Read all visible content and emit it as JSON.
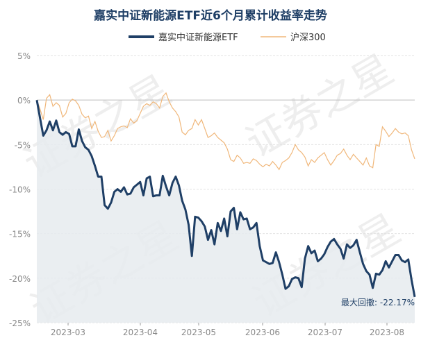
{
  "chart_data": {
    "type": "line",
    "title": "嘉实中证新能源ETF近6个月累计收益率走势",
    "x_tick_labels": [
      "2023-03",
      "2023-04",
      "2023-05",
      "2023-06",
      "2023-07",
      "2023-08"
    ],
    "y_tick_labels": [
      "5%",
      "0%",
      "-5%",
      "-10%",
      "-15%",
      "-20%",
      "-25%"
    ],
    "ylim": [
      -25,
      5
    ],
    "grid": true,
    "legend_position": "top-center",
    "annotation": "最大回撤: -22.17%",
    "watermark": "证券之星",
    "series": [
      {
        "name": "嘉实中证新能源ETF",
        "color": "#1f3f66",
        "fill": "#e6ebef",
        "values": [
          0.0,
          -2.0,
          -4.0,
          -3.4,
          -2.4,
          -3.4,
          -2.3,
          -3.6,
          -3.9,
          -3.6,
          -3.8,
          -5.2,
          -5.2,
          -3.3,
          -4.6,
          -5.3,
          -5.6,
          -6.3,
          -7.4,
          -8.6,
          -8.6,
          -11.8,
          -12.2,
          -11.5,
          -10.3,
          -10.0,
          -10.3,
          -9.8,
          -10.6,
          -10.5,
          -9.8,
          -9.5,
          -9.2,
          -10.7,
          -8.8,
          -8.6,
          -10.8,
          -10.7,
          -10.7,
          -8.5,
          -9.7,
          -10.7,
          -9.3,
          -8.6,
          -9.6,
          -11.3,
          -12.3,
          -14.0,
          -17.5,
          -13.1,
          -13.2,
          -13.6,
          -14.2,
          -15.7,
          -14.6,
          -16.2,
          -13.8,
          -14.7,
          -13.3,
          -15.3,
          -12.5,
          -12.1,
          -14.5,
          -12.6,
          -13.4,
          -13.3,
          -14.5,
          -14.3,
          -13.8,
          -16.4,
          -18.0,
          -18.2,
          -18.4,
          -18.3,
          -17.1,
          -18.2,
          -19.6,
          -21.2,
          -20.9,
          -20.1,
          -19.9,
          -20.0,
          -21.0,
          -17.8,
          -16.4,
          -17.2,
          -16.9,
          -18.1,
          -17.8,
          -17.3,
          -16.5,
          -15.9,
          -15.6,
          -16.2,
          -16.7,
          -17.8,
          -16.2,
          -16.6,
          -16.3,
          -15.7,
          -17.1,
          -18.4,
          -19.2,
          -19.6,
          -21.1,
          -19.5,
          -19.6,
          -19.1,
          -18.1,
          -18.8,
          -18.1,
          -17.4,
          -17.4,
          -18.0,
          -18.2,
          -17.9,
          -20.2,
          -22.1
        ]
      },
      {
        "name": "沪深300",
        "color": "#f0b77a",
        "values": [
          0.0,
          -1.0,
          -2.2,
          0.2,
          0.6,
          -0.7,
          -0.3,
          -0.6,
          -1.9,
          -1.5,
          -0.3,
          0.1,
          -0.1,
          -0.6,
          -1.6,
          -2.0,
          -1.8,
          -3.2,
          -2.4,
          -3.5,
          -4.2,
          -4.1,
          -3.4,
          -4.6,
          -4.0,
          -3.2,
          -3.0,
          -2.9,
          -3.1,
          -2.1,
          -2.6,
          -2.3,
          -1.5,
          -0.7,
          -0.4,
          -0.6,
          -0.2,
          -0.4,
          -0.9,
          0.4,
          0.8,
          -0.2,
          -0.9,
          -1.3,
          -1.9,
          -3.6,
          -3.9,
          -3.4,
          -3.2,
          -2.2,
          -2.8,
          -2.2,
          -3.2,
          -4.2,
          -4.0,
          -3.7,
          -4.2,
          -4.5,
          -4.8,
          -5.5,
          -6.7,
          -6.9,
          -6.2,
          -6.5,
          -7.1,
          -7.0,
          -7.1,
          -6.6,
          -6.8,
          -7.2,
          -7.5,
          -7.2,
          -7.4,
          -6.9,
          -7.3,
          -7.8,
          -7.0,
          -6.8,
          -6.5,
          -5.9,
          -5.0,
          -5.6,
          -5.9,
          -6.4,
          -7.4,
          -6.7,
          -7.0,
          -6.5,
          -6.2,
          -5.9,
          -6.7,
          -7.3,
          -6.8,
          -6.2,
          -6.0,
          -5.5,
          -6.2,
          -6.7,
          -6.1,
          -6.5,
          -6.9,
          -7.3,
          -6.5,
          -7.4,
          -7.6,
          -5.0,
          -5.2,
          -3.0,
          -3.5,
          -4.1,
          -3.7,
          -3.2,
          -3.6,
          -3.8,
          -3.7,
          -4.0,
          -5.6,
          -6.6
        ]
      }
    ]
  }
}
